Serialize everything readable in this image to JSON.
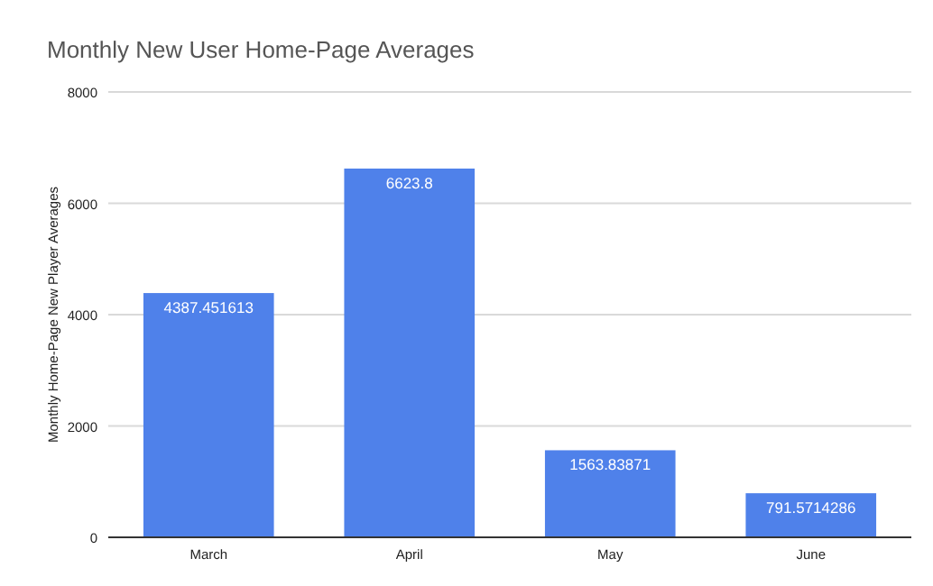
{
  "chart_data": {
    "type": "bar",
    "title": "Monthly New User Home-Page Averages",
    "ylabel": "Monthly Home-Page New Player Averages",
    "categories": [
      "March",
      "April",
      "May",
      "June"
    ],
    "values": [
      4387.451613,
      6623.8,
      1563.83871,
      791.5714286
    ],
    "color": "#4f81ea",
    "ylim": [
      0,
      8000
    ],
    "yticks": [
      0,
      2000,
      4000,
      6000,
      8000
    ],
    "grid": "y",
    "data_labels": true
  }
}
